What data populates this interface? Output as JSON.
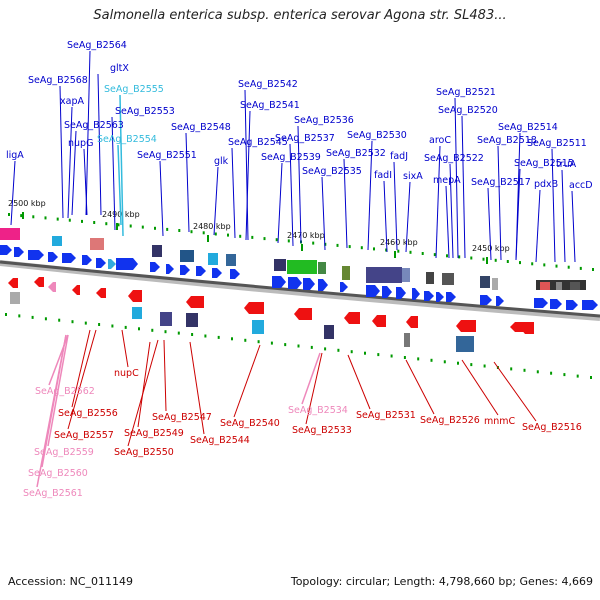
{
  "title": "Salmonella enterica subsp. enterica serovar Agona str. SL483...",
  "footer": {
    "accession": "Accession: NC_011149",
    "summary": "Topology: circular; Length: 4,798,660 bp; Genes: 4,669"
  },
  "colors": {
    "forward_label": "#0000cc",
    "reverse_label": "#cc0000",
    "highlight_top": "#33bbdd",
    "highlight_bottom": "#ee88bb",
    "tick": "#009900",
    "backbone": "#555555"
  },
  "kbp_labels": [
    "2500 kbp",
    "2490 kbp",
    "2480 kbp",
    "2470 kbp",
    "2460 kbp",
    "2450 kbp"
  ],
  "top_labels": [
    "SeAg_B2564",
    "SeAg_B2568",
    "gltX",
    "xapA",
    "SeAg_B2555",
    "SeAg_B2553",
    "SeAg_B2563",
    "nupG",
    "SeAg_B2554",
    "ligA",
    "SeAg_B2551",
    "SeAg_B2548",
    "glk",
    "SeAg_B2545",
    "SeAg_B2542",
    "SeAg_B2541",
    "SeAg_B2536",
    "SeAg_B2537",
    "SeAg_B2539",
    "SeAg_B2532",
    "SeAg_B2535",
    "SeAg_B2530",
    "fadJ",
    "fadI",
    "sixA",
    "SeAg_B2521",
    "SeAg_B2520",
    "aroC",
    "SeAg_B2522",
    "mepA",
    "SeAg_B2514",
    "SeAg_B2518",
    "SeAg_B2511",
    "SeAg_B2515",
    "SeAg_B2517",
    "truA",
    "pdxB",
    "accD"
  ],
  "bottom_labels": [
    "SeAg_B2562",
    "nupC",
    "SeAg_B2556",
    "SeAg_B2557",
    "SeAg_B2559",
    "SeAg_B2560",
    "SeAg_B2561",
    "SeAg_B2547",
    "SeAg_B2549",
    "SeAg_B2550",
    "SeAg_B2544",
    "SeAg_B2540",
    "SeAg_B2534",
    "SeAg_B2533",
    "SeAg_B2531",
    "SeAg_B2526",
    "mnmC",
    "SeAg_B2516"
  ]
}
